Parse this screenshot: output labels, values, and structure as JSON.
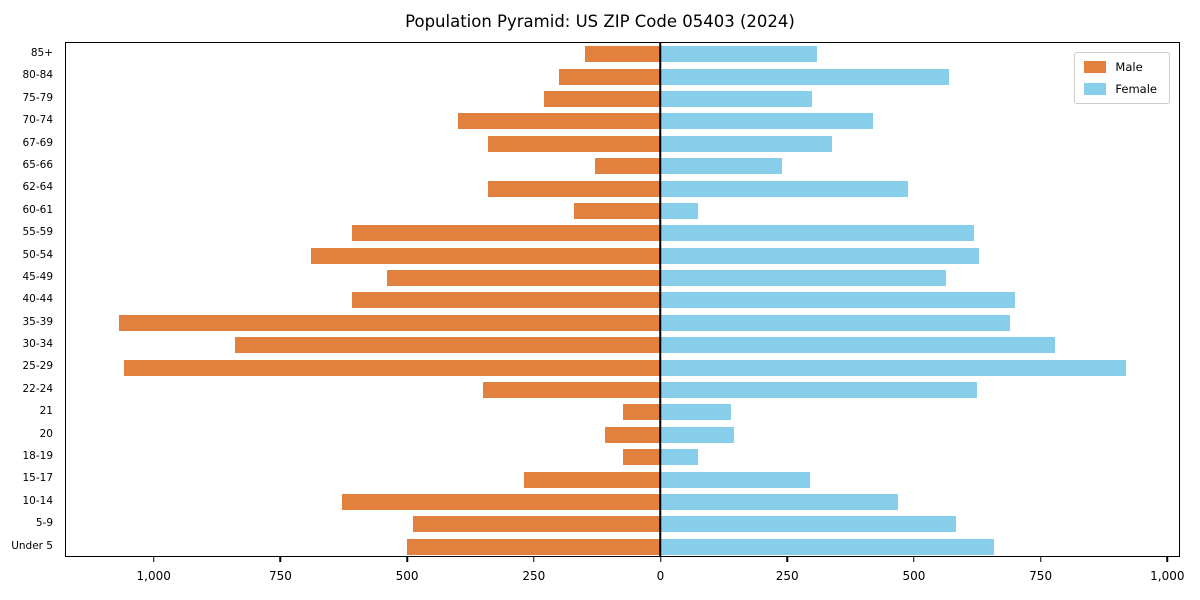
{
  "title": "Population Pyramid: US ZIP Code 05403 (2024)",
  "legend": {
    "male": "Male",
    "female": "Female"
  },
  "colors": {
    "male": "#e2813d",
    "female": "#87ceeb",
    "axis": "#000000"
  },
  "chart_data": {
    "type": "bar",
    "subtype": "population-pyramid",
    "title": "Population Pyramid: US ZIP Code 05403 (2024)",
    "orientation": "horizontal",
    "grid": false,
    "legend_position": "upper right",
    "categories": [
      "85+",
      "80-84",
      "75-79",
      "70-74",
      "67-69",
      "65-66",
      "62-64",
      "60-61",
      "55-59",
      "50-54",
      "45-49",
      "40-44",
      "35-39",
      "30-34",
      "25-29",
      "22-24",
      "21",
      "20",
      "18-19",
      "15-17",
      "10-14",
      "5-9",
      "Under 5"
    ],
    "series": [
      {
        "name": "Male",
        "direction": "left",
        "color": "#e2813d",
        "values": [
          150,
          200,
          230,
          400,
          340,
          130,
          340,
          170,
          610,
          690,
          540,
          610,
          1070,
          840,
          1060,
          350,
          75,
          110,
          75,
          270,
          630,
          490,
          500
        ]
      },
      {
        "name": "Female",
        "direction": "right",
        "color": "#87ceeb",
        "values": [
          310,
          570,
          300,
          420,
          340,
          240,
          490,
          75,
          620,
          630,
          565,
          700,
          690,
          780,
          920,
          625,
          140,
          145,
          75,
          295,
          470,
          585,
          660
        ]
      }
    ],
    "xlim": [
      -1175,
      1025
    ],
    "xticks": [
      {
        "value": -1000,
        "label": "1,000"
      },
      {
        "value": -750,
        "label": "750"
      },
      {
        "value": -500,
        "label": "500"
      },
      {
        "value": -250,
        "label": "250"
      },
      {
        "value": 0,
        "label": "0"
      },
      {
        "value": 250,
        "label": "250"
      },
      {
        "value": 500,
        "label": "500"
      },
      {
        "value": 750,
        "label": "750"
      },
      {
        "value": 1000,
        "label": "1,000"
      }
    ]
  }
}
